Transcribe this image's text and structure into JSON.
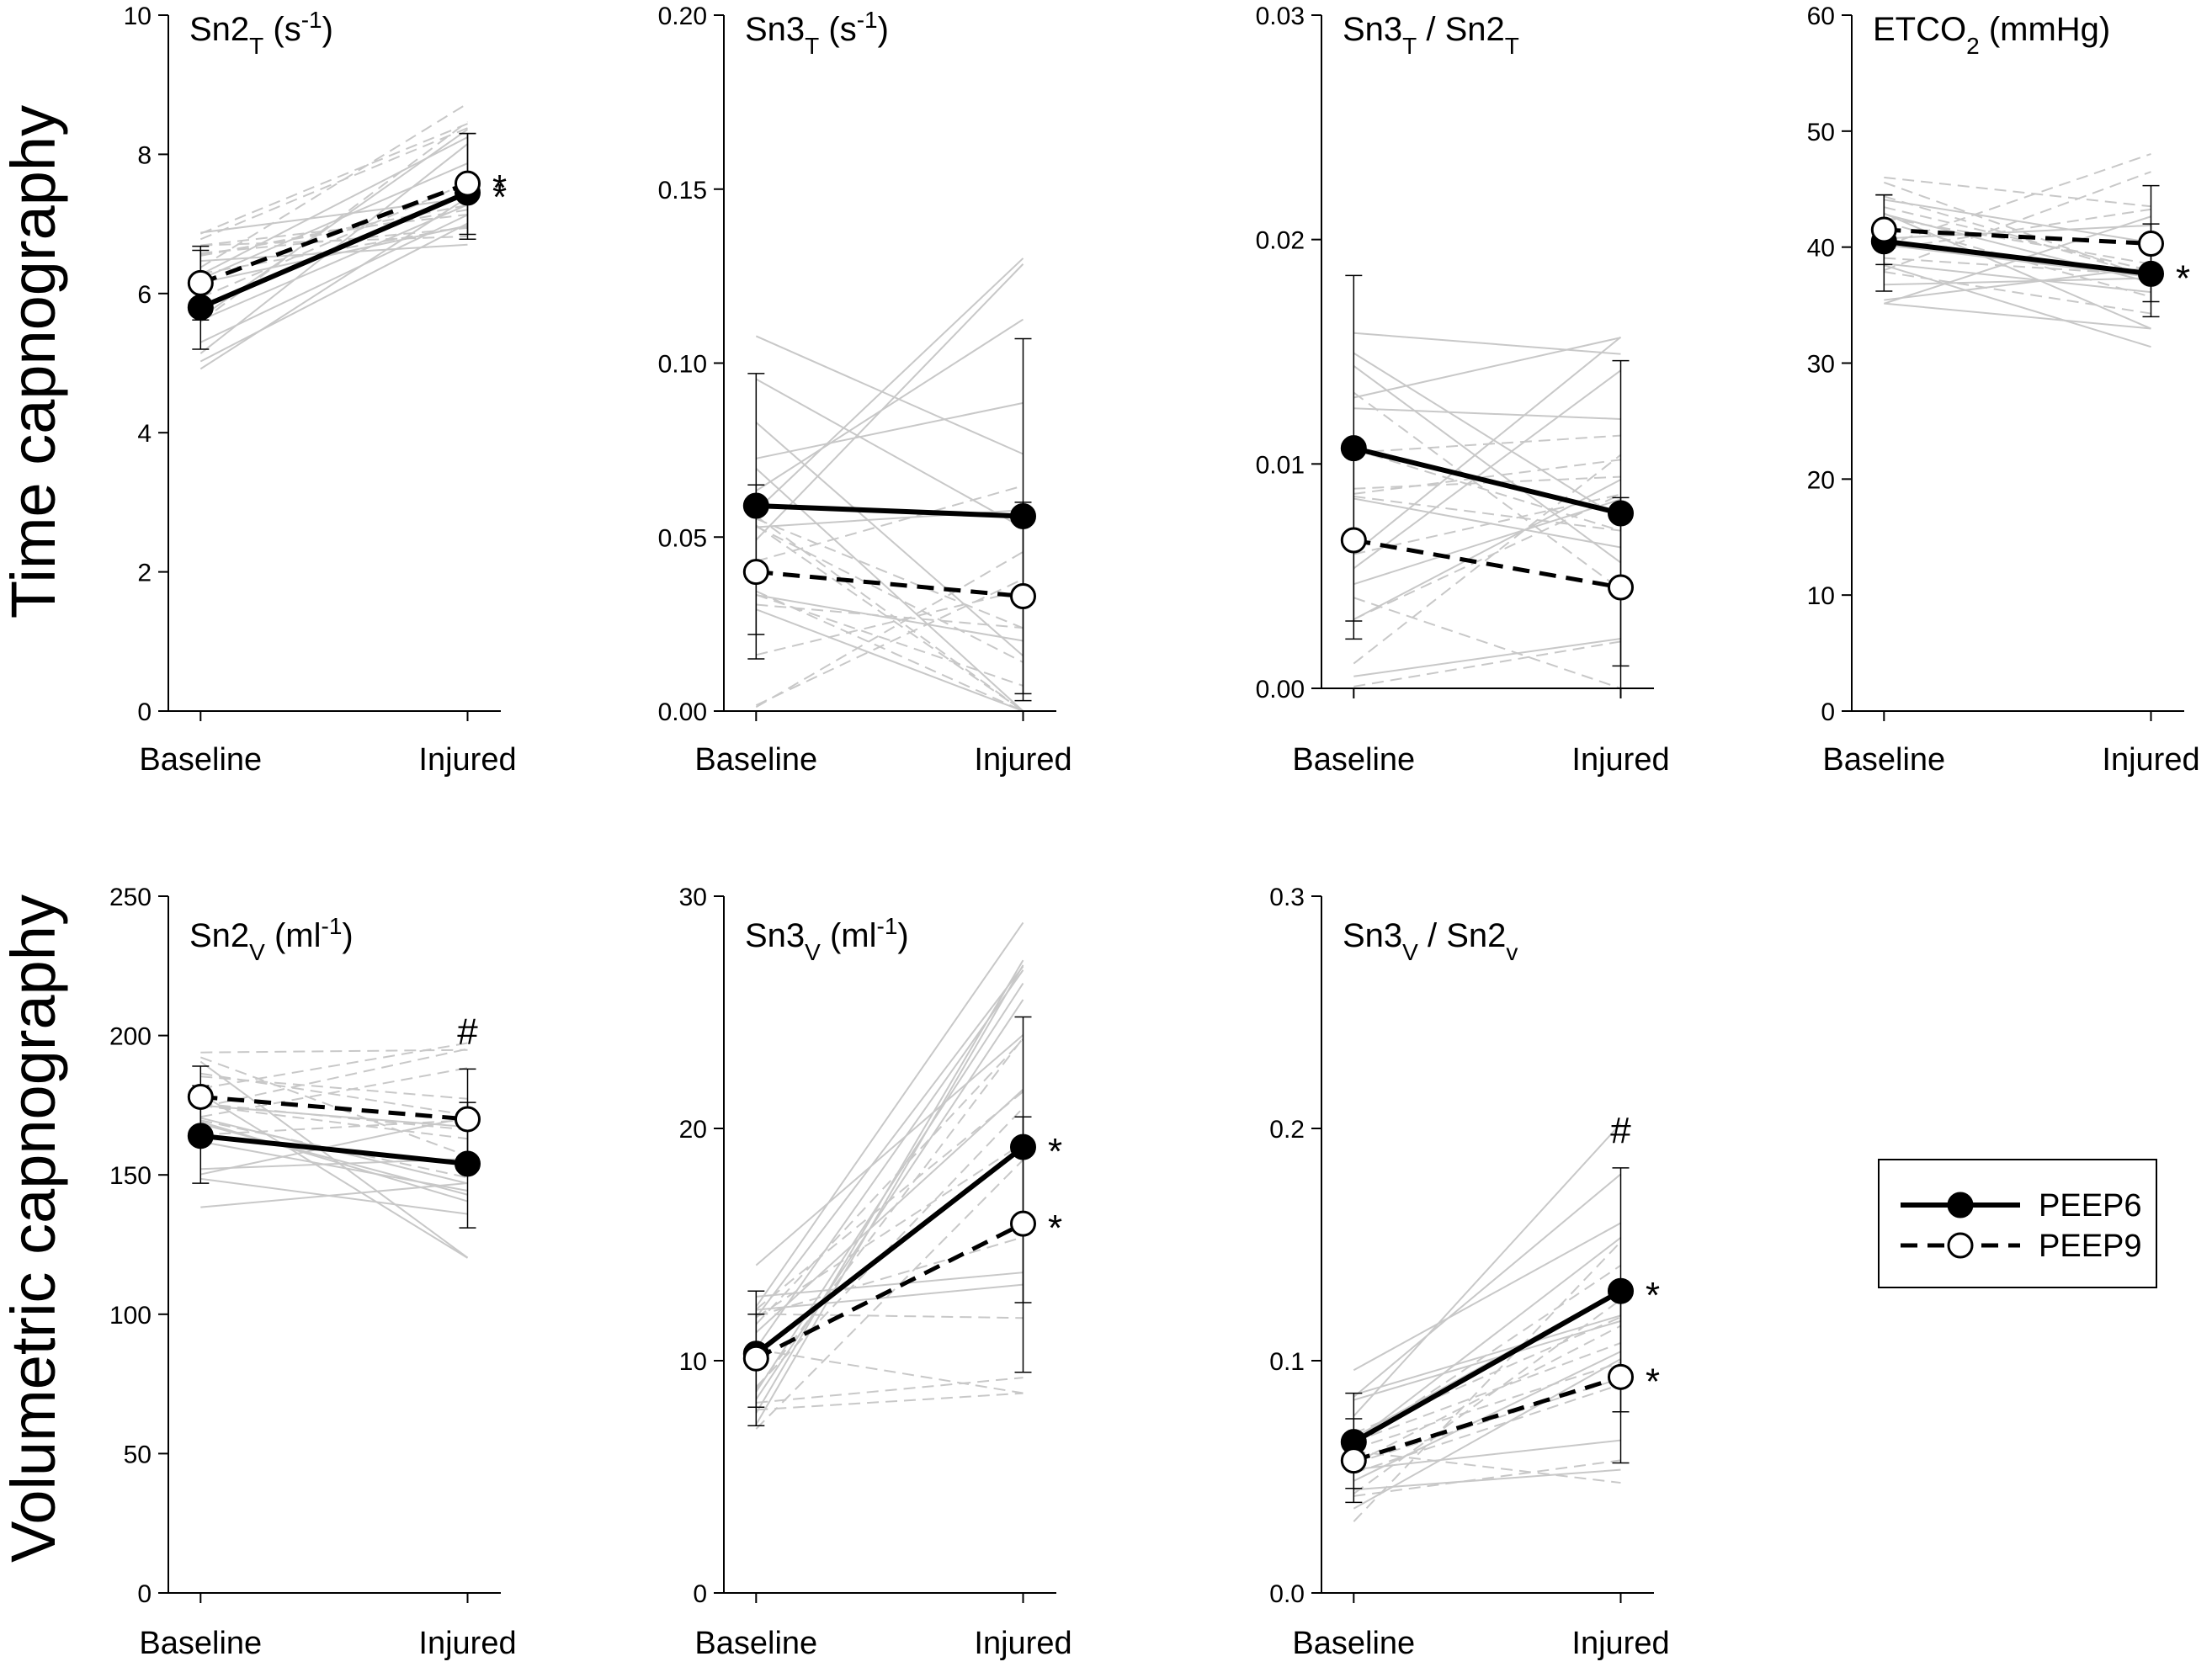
{
  "row_labels": {
    "time": "Time capnography",
    "volumetric": "Volumetric capnography"
  },
  "legend": [
    {
      "label": "PEEP6",
      "marker": "filled-circle",
      "line": "solid"
    },
    {
      "label": "PEEP9",
      "marker": "open-circle",
      "line": "dashed"
    }
  ],
  "chart_data": [
    {
      "id": "sn2t",
      "type": "line",
      "title": "Sn2",
      "title_sub": "T",
      "title_unit_pre": " (s",
      "title_unit_sup": "-1",
      "title_unit_post": ")",
      "categories": [
        "Baseline",
        "Injured"
      ],
      "ylim": [
        0,
        10
      ],
      "yticks": [
        "0",
        "2",
        "4",
        "6",
        "8",
        "10"
      ],
      "series": [
        {
          "name": "PEEP6",
          "values": [
            5.8,
            7.45
          ],
          "sd_upper": [
            6.62,
            8.3
          ],
          "sd_lower": [
            5.2,
            6.78
          ]
        },
        {
          "name": "PEEP9",
          "values": [
            6.15,
            7.58
          ],
          "sd_upper": [
            6.68,
            8.3
          ],
          "sd_lower": [
            5.62,
            6.85
          ]
        }
      ],
      "significance": [
        {
          "text": "*",
          "near": "PEEP9",
          "category": "Injured"
        },
        {
          "text": "*",
          "near": "PEEP6",
          "category": "Injured"
        }
      ]
    },
    {
      "id": "sn3t",
      "type": "line",
      "title": "Sn3",
      "title_sub": "T",
      "title_unit_pre": " (s",
      "title_unit_sup": "-1",
      "title_unit_post": ")",
      "categories": [
        "Baseline",
        "Injured"
      ],
      "ylim": [
        0,
        0.2
      ],
      "yticks": [
        "0.00",
        "0.05",
        "0.10",
        "0.15",
        "0.20"
      ],
      "series": [
        {
          "name": "PEEP6",
          "values": [
            0.059,
            0.056
          ],
          "sd_upper": [
            0.097,
            0.107
          ],
          "sd_lower": [
            0.022,
            0.005
          ]
        },
        {
          "name": "PEEP9",
          "values": [
            0.04,
            0.033
          ],
          "sd_upper": [
            0.065,
            0.06
          ],
          "sd_lower": [
            0.015,
            0.003
          ]
        }
      ],
      "significance": []
    },
    {
      "id": "ratio_t",
      "type": "line",
      "title": "Sn3",
      "title_sub": "T",
      "title_mid": " / Sn2",
      "title_sub2": "T",
      "categories": [
        "Baseline",
        "Injured"
      ],
      "ylim": [
        0,
        0.03
      ],
      "yticks": [
        "0.00",
        "0.01",
        "0.02",
        "0.03"
      ],
      "series": [
        {
          "name": "PEEP6",
          "values": [
            0.0107,
            0.0078
          ],
          "sd_upper": [
            0.0184,
            0.0146
          ],
          "sd_lower": [
            0.003,
            0.001
          ]
        },
        {
          "name": "PEEP9",
          "values": [
            0.0066,
            0.0045
          ],
          "sd_upper": [
            0.0105,
            0.0085
          ],
          "sd_lower": [
            0.0022,
            0.0
          ]
        }
      ],
      "significance": []
    },
    {
      "id": "etco2",
      "type": "line",
      "title": "ETCO",
      "title_sub": "2",
      "title_mid": " (mmHg)",
      "categories": [
        "Baseline",
        "Injured"
      ],
      "ylim": [
        0,
        60
      ],
      "yticks": [
        "0",
        "10",
        "20",
        "30",
        "40",
        "50",
        "60"
      ],
      "series": [
        {
          "name": "PEEP6",
          "values": [
            40.5,
            37.7
          ],
          "sd_upper": [
            44.5,
            42.0
          ],
          "sd_lower": [
            36.2,
            34.0
          ]
        },
        {
          "name": "PEEP9",
          "values": [
            41.5,
            40.3
          ],
          "sd_upper": [
            44.5,
            45.3
          ],
          "sd_lower": [
            38.5,
            35.3
          ]
        }
      ],
      "significance": [
        {
          "text": "*",
          "near": "PEEP6",
          "category": "Injured"
        }
      ]
    },
    {
      "id": "sn2v",
      "type": "line",
      "title": "Sn2",
      "title_sub": "V",
      "title_unit_pre": " (ml",
      "title_unit_sup": "-1",
      "title_unit_post": ")",
      "categories": [
        "Baseline",
        "Injured"
      ],
      "ylim": [
        0,
        250
      ],
      "yticks": [
        "0",
        "50",
        "100",
        "150",
        "200",
        "250"
      ],
      "series": [
        {
          "name": "PEEP6",
          "values": [
            164,
            154
          ],
          "sd_upper": [
            182,
            176
          ],
          "sd_lower": [
            147,
            131
          ]
        },
        {
          "name": "PEEP9",
          "values": [
            178,
            170
          ],
          "sd_upper": [
            189,
            188
          ],
          "sd_lower": [
            166,
            152
          ]
        }
      ],
      "significance": [
        {
          "text": "#",
          "near": "top",
          "category": "Injured"
        }
      ]
    },
    {
      "id": "sn3v",
      "type": "line",
      "title": "Sn3",
      "title_sub": "V",
      "title_unit_pre": " (ml",
      "title_unit_sup": "-1",
      "title_unit_post": ")",
      "categories": [
        "Baseline",
        "Injured"
      ],
      "ylim": [
        0,
        30
      ],
      "yticks": [
        "0",
        "10",
        "20",
        "30"
      ],
      "series": [
        {
          "name": "PEEP6",
          "values": [
            10.3,
            19.2
          ],
          "sd_upper": [
            13.0,
            24.8
          ],
          "sd_lower": [
            7.2,
            12.5
          ]
        },
        {
          "name": "PEEP9",
          "values": [
            10.1,
            15.9
          ],
          "sd_upper": [
            12.0,
            20.5
          ],
          "sd_lower": [
            8.0,
            9.5
          ]
        }
      ],
      "significance": [
        {
          "text": "*",
          "near": "PEEP6",
          "category": "Injured"
        },
        {
          "text": "*",
          "near": "PEEP9",
          "category": "Injured"
        }
      ]
    },
    {
      "id": "ratio_v",
      "type": "line",
      "title": "Sn3",
      "title_sub": "V",
      "title_mid": " / Sn2",
      "title_sub2": "v",
      "categories": [
        "Baseline",
        "Injured"
      ],
      "ylim": [
        0,
        0.3
      ],
      "yticks": [
        "0.0",
        "0.1",
        "0.2",
        "0.3"
      ],
      "series": [
        {
          "name": "PEEP6",
          "values": [
            0.065,
            0.13
          ],
          "sd_upper": [
            0.086,
            0.183
          ],
          "sd_lower": [
            0.045,
            0.078
          ]
        },
        {
          "name": "PEEP9",
          "values": [
            0.057,
            0.093
          ],
          "sd_upper": [
            0.075,
            0.13
          ],
          "sd_lower": [
            0.039,
            0.056
          ]
        }
      ],
      "significance": [
        {
          "text": "#",
          "near": "top",
          "category": "Injured"
        },
        {
          "text": "*",
          "near": "PEEP6",
          "category": "Injured"
        },
        {
          "text": "*",
          "near": "PEEP9",
          "category": "Injured"
        }
      ]
    }
  ]
}
